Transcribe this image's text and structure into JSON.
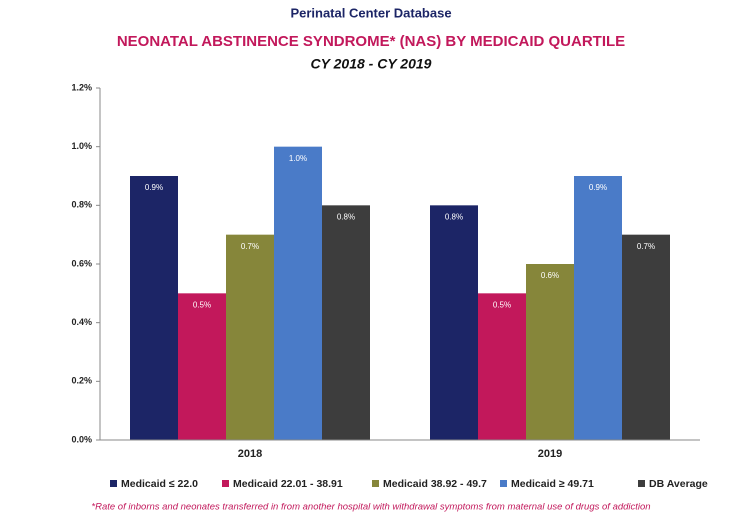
{
  "chart_data": {
    "type": "bar",
    "supertitle": "Perinatal Center Database",
    "title": "NEONATAL ABSTINENCE SYNDROME* (NAS) BY MEDICAID QUARTILE",
    "subtitle": "CY 2018 - CY 2019",
    "footnote": "*Rate of inborns and neonates transferred in from another hospital with withdrawal symptoms from maternal use of drugs of addiction",
    "categories": [
      "2018",
      "2019"
    ],
    "series": [
      {
        "name": "Medicaid ≤ 22.0",
        "color": "#1c2566",
        "values": [
          0.9,
          0.8
        ],
        "value_labels": [
          "0.9%",
          "0.8%"
        ]
      },
      {
        "name": "Medicaid 22.01 - 38.91",
        "color": "#c2185b",
        "values": [
          0.5,
          0.5
        ],
        "value_labels": [
          "0.5%",
          "0.5%"
        ]
      },
      {
        "name": "Medicaid 38.92 - 49.7",
        "color": "#86863a",
        "values": [
          0.7,
          0.6
        ],
        "value_labels": [
          "0.7%",
          "0.6%"
        ]
      },
      {
        "name": "Medicaid ≥ 49.71",
        "color": "#4a7bc8",
        "values": [
          1.0,
          0.9
        ],
        "value_labels": [
          "1.0%",
          "0.9%"
        ]
      },
      {
        "name": "DB Average",
        "color": "#3d3d3d",
        "values": [
          0.8,
          0.7
        ],
        "value_labels": [
          "0.8%",
          "0.7%"
        ]
      }
    ],
    "ylim": [
      0,
      1.2
    ],
    "yticks": [
      {
        "value": 0,
        "label": "0.0%"
      },
      {
        "value": 0.2,
        "label": "0.2%"
      },
      {
        "value": 0.4,
        "label": "0.4%"
      },
      {
        "value": 0.6,
        "label": "0.6%"
      },
      {
        "value": 0.8,
        "label": "0.8%"
      },
      {
        "value": 1.0,
        "label": "1.0%"
      },
      {
        "value": 1.2,
        "label": "1.2%"
      }
    ],
    "legend": "bottom"
  }
}
